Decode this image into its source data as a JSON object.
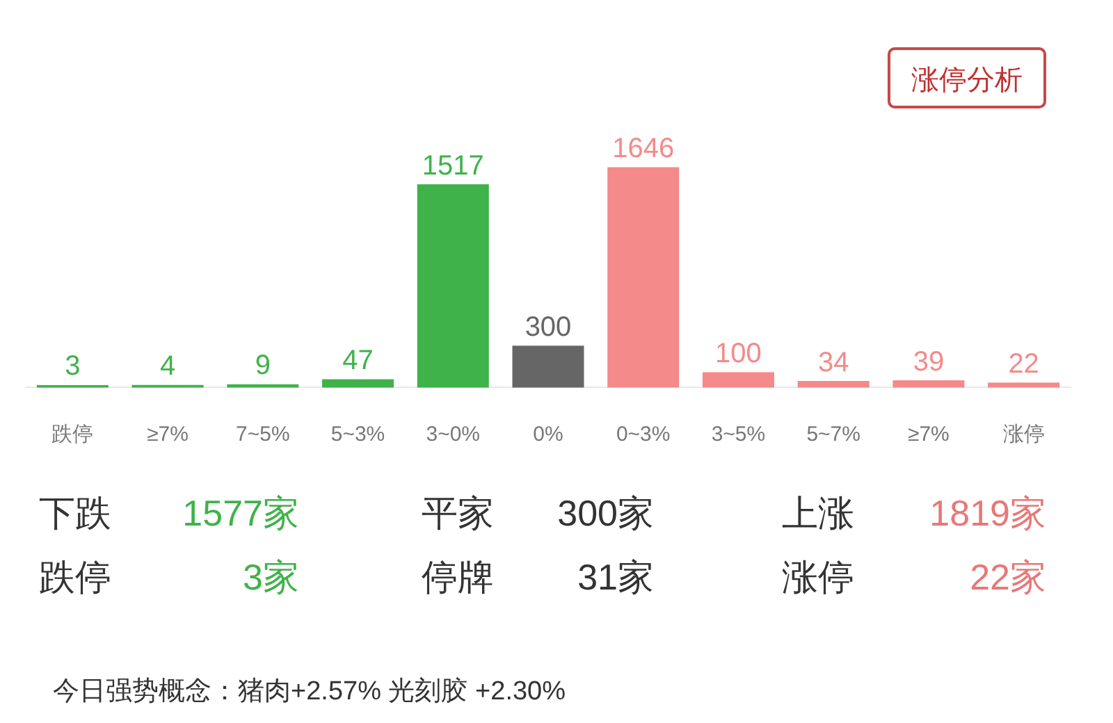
{
  "chart_data": {
    "type": "bar",
    "categories": [
      "跌停",
      "≥7%",
      "7~5%",
      "5~3%",
      "3~0%",
      "0%",
      "0~3%",
      "3~5%",
      "5~7%",
      "≥7%",
      "涨停"
    ],
    "values": [
      3,
      4,
      9,
      47,
      1517,
      300,
      1646,
      100,
      34,
      39,
      22
    ],
    "colors": [
      "#3fb24a",
      "#3fb24a",
      "#3fb24a",
      "#3fb24a",
      "#3fb24a",
      "#666666",
      "#f48a8a",
      "#f48a8a",
      "#f48a8a",
      "#f48a8a",
      "#f48a8a"
    ],
    "data_labels": true,
    "annotations": [
      "涨停分析",
      "下跌",
      "1577家",
      "平家",
      "300家",
      "上涨",
      "1819家",
      "跌停",
      "3家",
      "停牌",
      "31家",
      "涨停",
      "22家",
      "今日强势概念：猪肉+2.57%  光刻胶 +2.30%"
    ]
  }
}
